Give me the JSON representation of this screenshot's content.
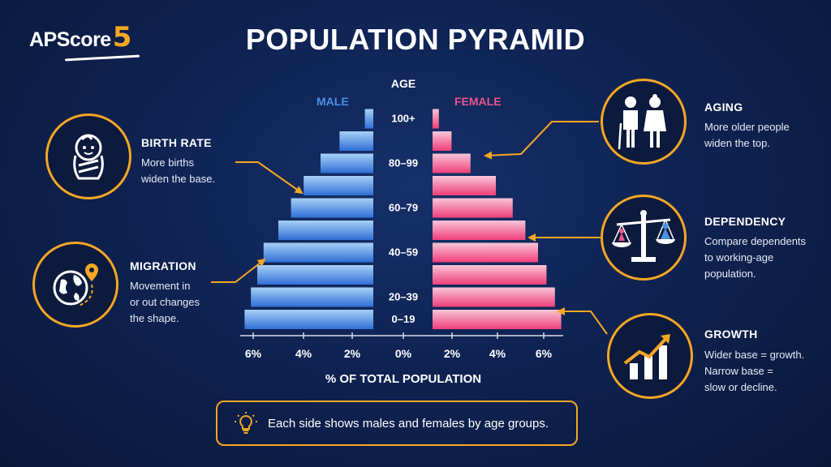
{
  "brand": {
    "name": "APScore",
    "number": "5"
  },
  "title": "POPULATION PYRAMID",
  "labels": {
    "male": "MALE",
    "female": "FEMALE",
    "age": "AGE"
  },
  "cards": {
    "birth_rate": {
      "title": "BIRTH RATE",
      "lines": [
        "More births",
        "widen the base."
      ],
      "icon": "baby-icon"
    },
    "migration": {
      "title": "MIGRATION",
      "lines": [
        "Movement in",
        "or out changes",
        "the shape."
      ],
      "icon": "globe-pin-icon"
    },
    "aging": {
      "title": "AGING",
      "lines": [
        "More older people",
        "widen the top."
      ],
      "icon": "elderly-couple-icon"
    },
    "dependency": {
      "title": "DEPENDENCY",
      "lines": [
        "Compare dependents",
        "to working-age",
        "population."
      ],
      "icon": "balance-scale-icon"
    },
    "growth": {
      "title": "GROWTH",
      "lines": [
        "Wider base = growth.",
        "Narrow base =",
        "slow or decline."
      ],
      "icon": "growth-chart-icon"
    }
  },
  "footer": {
    "text": "Each side shows males and females by age groups.",
    "icon": "lightbulb-icon"
  },
  "colors": {
    "accent": "#f5a623",
    "male": "#4a90e2",
    "female": "#e8558a"
  },
  "chart_data": {
    "type": "bar",
    "xlabel": "% OF TOTAL POPULATION",
    "ylabel": "AGE",
    "x_ticks_left": [
      "6%",
      "4%",
      "2%"
    ],
    "x_ticks_center": "0%",
    "x_ticks_right": [
      "2%",
      "4%",
      "6%"
    ],
    "xlim": [
      0,
      6
    ],
    "age_labels": [
      "100+",
      "80–99",
      "60–79",
      "40–59",
      "20–39",
      "0–19"
    ],
    "series": [
      {
        "name": "MALE",
        "values": [
          6.1,
          5.8,
          5.5,
          5.2,
          4.5,
          3.9,
          3.3,
          2.5,
          1.6,
          0.4
        ]
      },
      {
        "name": "FEMALE",
        "values": [
          6.1,
          5.8,
          5.4,
          5.0,
          4.4,
          3.8,
          3.0,
          1.8,
          0.9,
          0.3
        ]
      }
    ]
  }
}
